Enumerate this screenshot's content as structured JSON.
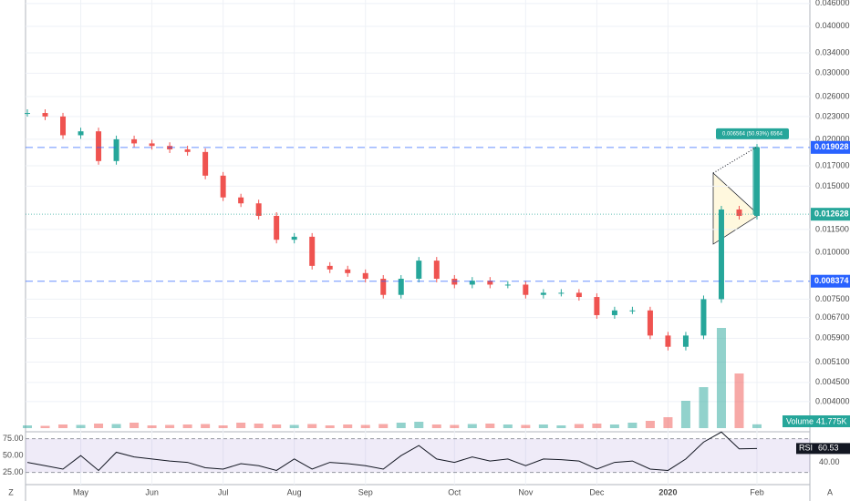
{
  "chart_data": {
    "type": "candle-line",
    "categories": [
      null,
      null,
      null,
      "May",
      null,
      null,
      null,
      "Jun",
      null,
      null,
      null,
      "Jul",
      null,
      null,
      null,
      "Aug",
      null,
      null,
      null,
      "Sep",
      null,
      null,
      null,
      null,
      "Oct",
      null,
      null,
      null,
      "Nov",
      null,
      null,
      null,
      "Dec",
      null,
      null,
      null,
      "2020",
      null,
      null,
      null,
      null,
      "Feb"
    ],
    "price": {
      "values": [
        0.0235,
        0.023,
        0.0205,
        0.021,
        0.0175,
        0.02,
        0.0195,
        0.0192,
        0.0188,
        0.0185,
        0.016,
        0.014,
        0.0135,
        0.0125,
        0.0108,
        0.011,
        0.0092,
        0.009,
        0.0088,
        0.0085,
        0.0077,
        0.0085,
        0.0095,
        0.0085,
        0.0082,
        0.0084,
        0.0082,
        0.0082,
        0.0077,
        0.0078,
        0.0078,
        0.0076,
        0.0068,
        0.007,
        0.007,
        0.006,
        0.0056,
        0.006,
        0.0075,
        0.013,
        0.0125,
        0.019
      ],
      "up_color": "#26a69a",
      "down_color": "#ef5350"
    },
    "log_scale": true,
    "ylim": [
      0.0034,
      0.047
    ],
    "yticks": [
      {
        "value": 0.046,
        "label": "0.046000"
      },
      {
        "value": 0.04,
        "label": "0.040000"
      },
      {
        "value": 0.034,
        "label": "0.034000"
      },
      {
        "value": 0.03,
        "label": "0.030000"
      },
      {
        "value": 0.026,
        "label": "0.026000"
      },
      {
        "value": 0.023,
        "label": "0.023000"
      },
      {
        "value": 0.02,
        "label": "0.020000"
      },
      {
        "value": 0.017,
        "label": "0.017000"
      },
      {
        "value": 0.015,
        "label": "0.015000"
      },
      {
        "value": 0.0115,
        "label": "0.011500"
      },
      {
        "value": 0.01,
        "label": "0.010000"
      },
      {
        "value": 0.0075,
        "label": "0.007500"
      },
      {
        "value": 0.0067,
        "label": "0.006700"
      },
      {
        "value": 0.0059,
        "label": "0.005900"
      },
      {
        "value": 0.0051,
        "label": "0.005100"
      },
      {
        "value": 0.0045,
        "label": "0.004500"
      },
      {
        "value": 0.004,
        "label": "0.004000"
      }
    ],
    "grid": true,
    "price_lines": [
      {
        "value": 0.019028,
        "color": "#2962ff",
        "style": "dashed"
      },
      {
        "value": 0.012628,
        "color": "#26a69a",
        "style": "dotted"
      },
      {
        "value": 0.008374,
        "color": "#2962ff",
        "style": "dashed"
      }
    ],
    "measure": {
      "label": "0.006564 (50.93%) 6564"
    },
    "volume": {
      "name": "Volume",
      "values": [
        30,
        25,
        40,
        35,
        50,
        45,
        60,
        30,
        35,
        40,
        45,
        30,
        60,
        50,
        40,
        35,
        45,
        30,
        40,
        35,
        45,
        60,
        70,
        40,
        35,
        45,
        50,
        40,
        35,
        40,
        30,
        45,
        50,
        40,
        60,
        80,
        120,
        300,
        450,
        1100,
        600,
        41.775
      ],
      "value_label": "41.775K",
      "vlim": [
        0,
        1200
      ]
    },
    "rsi": {
      "name": "RSI",
      "values": [
        40,
        35,
        30,
        50,
        28,
        55,
        48,
        45,
        42,
        40,
        32,
        30,
        38,
        35,
        28,
        45,
        30,
        40,
        38,
        35,
        30,
        50,
        65,
        45,
        40,
        48,
        42,
        45,
        35,
        45,
        44,
        42,
        30,
        40,
        42,
        30,
        28,
        45,
        70,
        85,
        60,
        60.53
      ],
      "ylim": [
        7,
        84
      ],
      "yticks": [
        {
          "value": 75,
          "label": "75.00"
        },
        {
          "value": 50,
          "label": "50.00"
        },
        {
          "value": 25,
          "label": "25.00"
        }
      ],
      "right_tick": {
        "value": 40,
        "label": "40.00"
      },
      "band": [
        25,
        75
      ],
      "color": "#131722"
    },
    "corner_labels": [
      "Z",
      "A"
    ]
  }
}
